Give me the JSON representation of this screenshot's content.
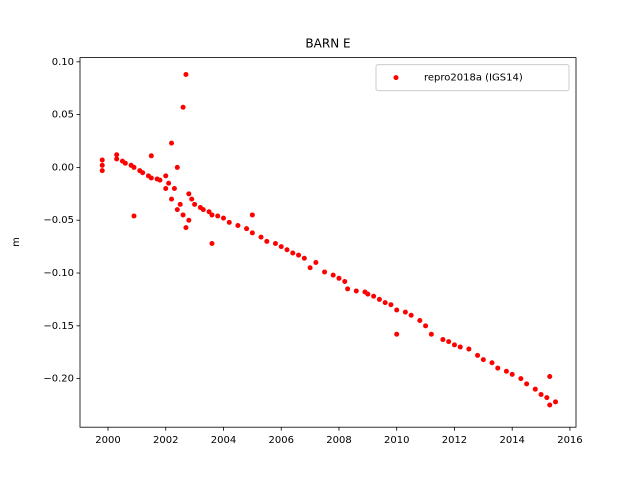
{
  "chart_data": {
    "type": "scatter",
    "title": "BARN E",
    "y_label": "m",
    "xlim": [
      1999.03,
      2016.21
    ],
    "ylim": [
      -0.246,
      0.104
    ],
    "xticks": [
      2000,
      2002,
      2004,
      2006,
      2008,
      2010,
      2012,
      2014,
      2016
    ],
    "yticks": [
      {
        "value": 0.1,
        "label": "0.10"
      },
      {
        "value": 0.05,
        "label": "0.05"
      },
      {
        "value": 0,
        "label": "0.00"
      },
      {
        "value": -0.05,
        "label": "−0.05"
      },
      {
        "value": -0.1,
        "label": "−0.10"
      },
      {
        "value": -0.15,
        "label": "−0.15"
      },
      {
        "value": -0.2,
        "label": "−0.20"
      }
    ],
    "legend_position": "upper right",
    "series": [
      {
        "name": "repro2018a (IGS14)",
        "color": "#ff0000",
        "x": [
          1999.8,
          1999.8,
          1999.8,
          2000.3,
          2000.3,
          2000.5,
          2000.6,
          2000.8,
          2000.9,
          2000.9,
          2001.1,
          2001.2,
          2001.4,
          2001.5,
          2001.5,
          2001.7,
          2001.8,
          2002.0,
          2002.0,
          2002.1,
          2002.2,
          2002.2,
          2002.3,
          2002.4,
          2002.4,
          2002.5,
          2002.6,
          2002.6,
          2002.7,
          2002.7,
          2002.8,
          2002.8,
          2002.9,
          2003.0,
          2003.2,
          2003.3,
          2003.5,
          2003.6,
          2003.6,
          2003.8,
          2004.0,
          2004.2,
          2004.5,
          2004.8,
          2005.0,
          2005.0,
          2005.3,
          2005.5,
          2005.8,
          2006.0,
          2006.2,
          2006.4,
          2006.6,
          2006.8,
          2007.0,
          2007.2,
          2007.5,
          2007.8,
          2008.0,
          2008.2,
          2008.3,
          2008.6,
          2008.9,
          2009.0,
          2009.2,
          2009.4,
          2009.6,
          2009.8,
          2010.0,
          2010.0,
          2010.3,
          2010.5,
          2010.8,
          2011.0,
          2011.2,
          2011.6,
          2011.8,
          2012.0,
          2012.2,
          2012.5,
          2012.8,
          2013.0,
          2013.3,
          2013.5,
          2013.8,
          2014.0,
          2014.3,
          2014.5,
          2014.8,
          2015.0,
          2015.2,
          2015.3,
          2015.3,
          2015.5
        ],
        "values": [
          0.007,
          -0.003,
          0.002,
          0.012,
          0.008,
          0.006,
          0.004,
          0.002,
          -0.046,
          0.0,
          -0.003,
          -0.005,
          -0.008,
          0.011,
          -0.01,
          -0.011,
          -0.012,
          -0.02,
          -0.008,
          -0.015,
          0.023,
          -0.03,
          -0.02,
          -0.04,
          0.0,
          -0.035,
          0.057,
          -0.045,
          0.088,
          -0.057,
          -0.025,
          -0.05,
          -0.03,
          -0.035,
          -0.038,
          -0.04,
          -0.042,
          -0.072,
          -0.045,
          -0.046,
          -0.048,
          -0.052,
          -0.055,
          -0.058,
          -0.062,
          -0.045,
          -0.066,
          -0.07,
          -0.072,
          -0.075,
          -0.078,
          -0.081,
          -0.083,
          -0.086,
          -0.095,
          -0.09,
          -0.099,
          -0.102,
          -0.105,
          -0.108,
          -0.115,
          -0.117,
          -0.118,
          -0.12,
          -0.122,
          -0.125,
          -0.128,
          -0.13,
          -0.158,
          -0.135,
          -0.137,
          -0.14,
          -0.145,
          -0.15,
          -0.158,
          -0.163,
          -0.165,
          -0.168,
          -0.17,
          -0.172,
          -0.178,
          -0.182,
          -0.185,
          -0.19,
          -0.193,
          -0.196,
          -0.2,
          -0.205,
          -0.21,
          -0.215,
          -0.218,
          -0.198,
          -0.225,
          -0.222
        ]
      }
    ]
  }
}
